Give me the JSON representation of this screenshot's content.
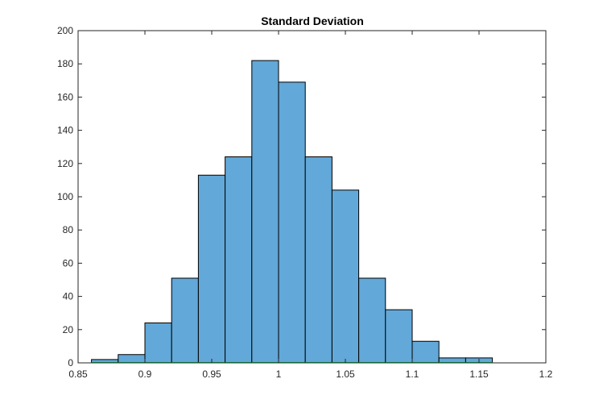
{
  "chart_data": {
    "type": "bar",
    "title": "Standard Deviation",
    "xlabel": "",
    "ylabel": "",
    "xlim": [
      0.85,
      1.2
    ],
    "ylim": [
      0,
      200
    ],
    "x_ticks": [
      0.85,
      0.9,
      0.95,
      1,
      1.05,
      1.1,
      1.15,
      1.2
    ],
    "x_tick_labels": [
      "0.85",
      "0.9",
      "0.95",
      "1",
      "1.05",
      "1.1",
      "1.15",
      "1.2"
    ],
    "y_ticks": [
      0,
      20,
      40,
      60,
      80,
      100,
      120,
      140,
      160,
      180,
      200
    ],
    "y_tick_labels": [
      "0",
      "20",
      "40",
      "60",
      "80",
      "100",
      "120",
      "140",
      "160",
      "180",
      "200"
    ],
    "grid": false,
    "legend": "none",
    "bin_edges": [
      0.86,
      0.88,
      0.9,
      0.92,
      0.94,
      0.96,
      0.98,
      1.0,
      1.02,
      1.04,
      1.06,
      1.08,
      1.1,
      1.12,
      1.14,
      1.16
    ],
    "values": [
      2,
      5,
      24,
      51,
      113,
      124,
      182,
      169,
      124,
      104,
      51,
      32,
      13,
      3,
      3
    ],
    "bar_color": "#62a8d8",
    "edge_color": "#000000",
    "baseline_edge_color": "#00b050"
  }
}
